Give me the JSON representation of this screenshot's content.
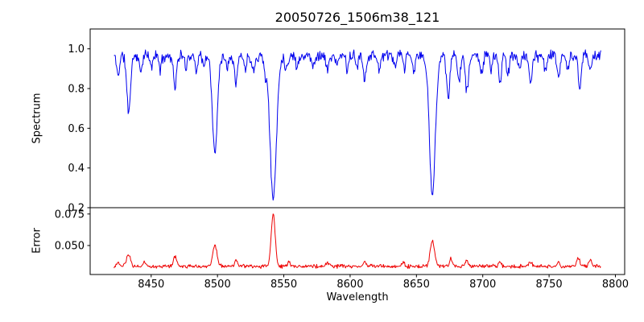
{
  "title": "20050726_1506m38_121",
  "axes": {
    "xlabel": "Wavelength",
    "xlim": [
      8404,
      8807
    ],
    "x_ticks": [
      {
        "value": 8450,
        "label": "8450"
      },
      {
        "value": 8500,
        "label": "8500"
      },
      {
        "value": 8550,
        "label": "8550"
      },
      {
        "value": 8600,
        "label": "8600"
      },
      {
        "value": 8650,
        "label": "8650"
      },
      {
        "value": 8700,
        "label": "8700"
      },
      {
        "value": 8750,
        "label": "8750"
      },
      {
        "value": 8800,
        "label": "8800"
      }
    ],
    "top": {
      "ylabel": "Spectrum",
      "ylim": [
        0.2,
        1.1
      ],
      "y_ticks": [
        {
          "value": 0.2,
          "label": "0.2"
        },
        {
          "value": 0.4,
          "label": "0.4"
        },
        {
          "value": 0.6,
          "label": "0.6"
        },
        {
          "value": 0.8,
          "label": "0.8"
        },
        {
          "value": 1.0,
          "label": "1.0"
        }
      ]
    },
    "bottom": {
      "ylabel": "Error",
      "ylim": [
        0.027,
        0.08
      ],
      "y_ticks": [
        {
          "value": 0.05,
          "label": "0.050"
        },
        {
          "value": 0.075,
          "label": "0.075"
        }
      ]
    }
  },
  "chart_data": [
    {
      "type": "line",
      "name": "spectrum",
      "panel": "top",
      "color": "#0000ee",
      "x_start": 8422,
      "x_end": 8789,
      "n_points": 760,
      "continuum": 0.965,
      "noise_amplitude": 0.035,
      "seed": 11,
      "absorption_lines": [
        [
          8425,
          0.1,
          1.0
        ],
        [
          8433,
          0.28,
          1.4
        ],
        [
          8442,
          0.08,
          1.0
        ],
        [
          8450,
          0.06,
          0.9
        ],
        [
          8457,
          0.07,
          0.9
        ],
        [
          8468,
          0.15,
          1.2
        ],
        [
          8476,
          0.06,
          0.9
        ],
        [
          8484,
          0.07,
          0.9
        ],
        [
          8490,
          0.06,
          0.9
        ],
        [
          8498,
          0.5,
          1.8
        ],
        [
          8507,
          0.06,
          0.9
        ],
        [
          8514,
          0.13,
          1.1
        ],
        [
          8521,
          0.07,
          0.9
        ],
        [
          8527,
          0.08,
          1.0
        ],
        [
          8536,
          0.07,
          1.0
        ],
        [
          8542,
          0.72,
          2.4
        ],
        [
          8552,
          0.07,
          1.0
        ],
        [
          8560,
          0.06,
          0.9
        ],
        [
          8572,
          0.06,
          0.9
        ],
        [
          8583,
          0.08,
          1.0
        ],
        [
          8590,
          0.06,
          0.9
        ],
        [
          8598,
          0.07,
          0.9
        ],
        [
          8605,
          0.06,
          0.9
        ],
        [
          8611,
          0.11,
          1.1
        ],
        [
          8622,
          0.07,
          0.9
        ],
        [
          8634,
          0.06,
          0.9
        ],
        [
          8641,
          0.06,
          0.9
        ],
        [
          8648,
          0.08,
          1.0
        ],
        [
          8662,
          0.7,
          2.2
        ],
        [
          8674,
          0.22,
          1.2
        ],
        [
          8682,
          0.12,
          1.0
        ],
        [
          8688,
          0.18,
          1.2
        ],
        [
          8699,
          0.09,
          1.0
        ],
        [
          8706,
          0.07,
          0.9
        ],
        [
          8713,
          0.13,
          1.1
        ],
        [
          8719,
          0.1,
          1.0
        ],
        [
          8728,
          0.07,
          0.9
        ],
        [
          8736,
          0.14,
          1.1
        ],
        [
          8747,
          0.08,
          0.9
        ],
        [
          8757,
          0.11,
          1.0
        ],
        [
          8764,
          0.09,
          0.9
        ],
        [
          8773,
          0.17,
          1.1
        ],
        [
          8781,
          0.08,
          0.9
        ]
      ]
    },
    {
      "type": "line",
      "name": "error",
      "panel": "bottom",
      "color": "#ee0000",
      "x_start": 8422,
      "x_end": 8789,
      "n_points": 760,
      "baseline": 0.0335,
      "noise_amplitude": 0.0018,
      "seed": 23,
      "spikes": [
        [
          8425,
          0.003,
          1.0
        ],
        [
          8433,
          0.009,
          1.5
        ],
        [
          8445,
          0.003,
          1.0
        ],
        [
          8468,
          0.008,
          1.3
        ],
        [
          8498,
          0.017,
          1.6
        ],
        [
          8514,
          0.005,
          1.1
        ],
        [
          8542,
          0.042,
          1.5
        ],
        [
          8554,
          0.004,
          1.0
        ],
        [
          8583,
          0.003,
          1.0
        ],
        [
          8611,
          0.004,
          1.0
        ],
        [
          8640,
          0.003,
          1.0
        ],
        [
          8662,
          0.02,
          1.6
        ],
        [
          8676,
          0.006,
          1.1
        ],
        [
          8688,
          0.005,
          1.1
        ],
        [
          8713,
          0.004,
          1.0
        ],
        [
          8736,
          0.004,
          1.0
        ],
        [
          8757,
          0.004,
          1.0
        ],
        [
          8772,
          0.007,
          1.1
        ],
        [
          8781,
          0.006,
          1.0
        ]
      ]
    }
  ]
}
